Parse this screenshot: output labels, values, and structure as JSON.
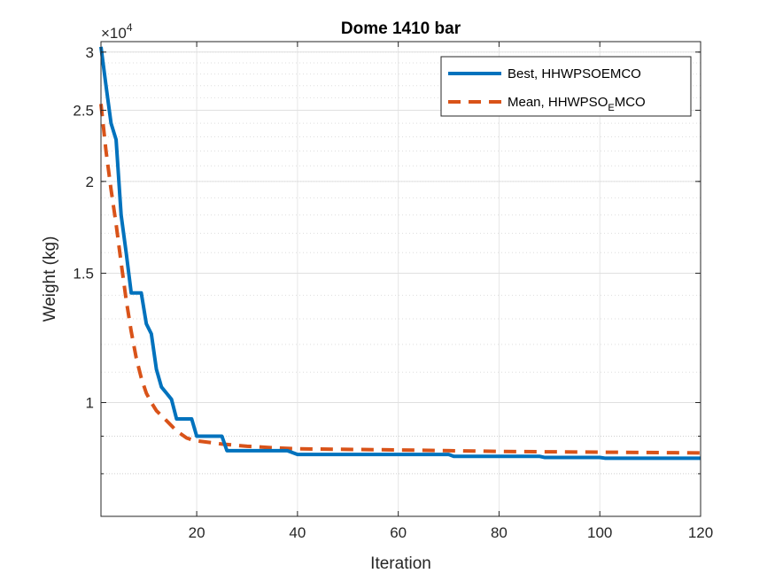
{
  "chart_data": {
    "type": "line",
    "title": "Dome 1410 bar",
    "xlabel": "Iteration",
    "ylabel": "Weight (kg)",
    "xlim": [
      1,
      120
    ],
    "ylim": [
      7000,
      31000
    ],
    "yscale": "log",
    "y_multiplier_label": "×10",
    "y_multiplier_exponent": "4",
    "xticks": [
      20,
      40,
      60,
      80,
      100,
      120
    ],
    "xtick_labels": [
      "20",
      "40",
      "60",
      "80",
      "100",
      "120"
    ],
    "yticks": [
      10000,
      15000,
      20000,
      25000,
      30000
    ],
    "ytick_labels": [
      "1",
      "1.5",
      "2",
      "2.5",
      "3"
    ],
    "grid": true,
    "legend_location": "top-right",
    "series": [
      {
        "name": "Best, HHWPSOEMCO",
        "color": "#0072BD",
        "style": "solid",
        "points": [
          [
            1,
            30500
          ],
          [
            2,
            27000
          ],
          [
            3,
            24000
          ],
          [
            4,
            22800
          ],
          [
            5,
            18000
          ],
          [
            6,
            16000
          ],
          [
            7,
            14100
          ],
          [
            8,
            14100
          ],
          [
            9,
            14100
          ],
          [
            10,
            12800
          ],
          [
            11,
            12400
          ],
          [
            12,
            11100
          ],
          [
            13,
            10500
          ],
          [
            14,
            10300
          ],
          [
            15,
            10100
          ],
          [
            16,
            9500
          ],
          [
            17,
            9500
          ],
          [
            18,
            9500
          ],
          [
            19,
            9500
          ],
          [
            20,
            9000
          ],
          [
            21,
            9000
          ],
          [
            22,
            9000
          ],
          [
            23,
            9000
          ],
          [
            24,
            9000
          ],
          [
            25,
            9000
          ],
          [
            26,
            8600
          ],
          [
            30,
            8600
          ],
          [
            38,
            8600
          ],
          [
            40,
            8500
          ],
          [
            70,
            8500
          ],
          [
            71,
            8450
          ],
          [
            88,
            8450
          ],
          [
            89,
            8420
          ],
          [
            100,
            8420
          ],
          [
            101,
            8400
          ],
          [
            120,
            8400
          ]
        ]
      },
      {
        "name": "Mean, HHWPSOEMCO",
        "legend_main": "Mean, HHWPSO",
        "legend_sub": "E",
        "legend_tail": "MCO",
        "color": "#D95319",
        "style": "dashed",
        "points": [
          [
            1,
            25500
          ],
          [
            2,
            22000
          ],
          [
            3,
            19500
          ],
          [
            4,
            17500
          ],
          [
            5,
            15500
          ],
          [
            6,
            13800
          ],
          [
            7,
            12500
          ],
          [
            8,
            11500
          ],
          [
            9,
            10800
          ],
          [
            10,
            10300
          ],
          [
            11,
            10000
          ],
          [
            12,
            9750
          ],
          [
            13,
            9600
          ],
          [
            14,
            9450
          ],
          [
            15,
            9300
          ],
          [
            16,
            9150
          ],
          [
            17,
            9050
          ],
          [
            18,
            8950
          ],
          [
            19,
            8900
          ],
          [
            20,
            8870
          ],
          [
            25,
            8780
          ],
          [
            30,
            8720
          ],
          [
            35,
            8680
          ],
          [
            40,
            8650
          ],
          [
            60,
            8620
          ],
          [
            80,
            8580
          ],
          [
            100,
            8560
          ],
          [
            120,
            8540
          ]
        ]
      }
    ]
  }
}
